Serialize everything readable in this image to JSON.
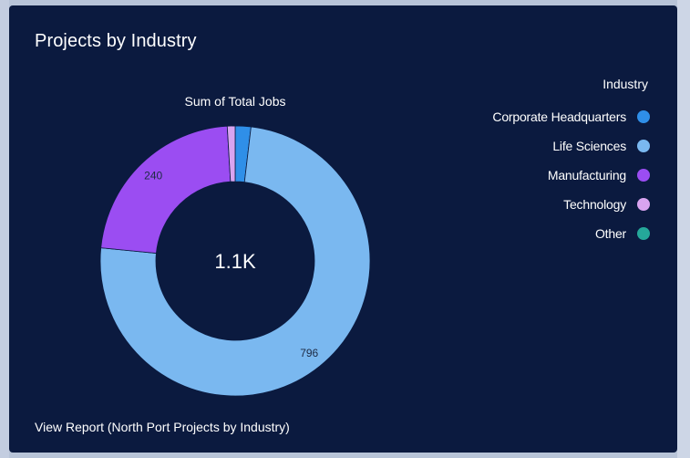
{
  "card": {
    "title": "Projects by Industry",
    "report_link": "View Report (North Port Projects by Industry)"
  },
  "colors": {
    "background": "#0b1a3f",
    "corporate_hq": "#2f8fe8",
    "life_sciences": "#7ab8f0",
    "manufacturing": "#9b4df2",
    "technology": "#d9a4f0",
    "other": "#25a89a"
  },
  "chart_data": {
    "type": "pie",
    "variant": "donut",
    "title": "Sum of Total Jobs",
    "center_label": "1.1K",
    "legend_title": "Industry",
    "legend_position": "right",
    "categories": [
      "Corporate Headquarters",
      "Life Sciences",
      "Manufacturing",
      "Technology",
      "Other"
    ],
    "values": [
      20,
      796,
      240,
      10,
      0
    ],
    "data_labels": [
      "",
      "796",
      "240",
      "",
      ""
    ],
    "colors": [
      "#2f8fe8",
      "#7ab8f0",
      "#9b4df2",
      "#d9a4f0",
      "#25a89a"
    ]
  }
}
